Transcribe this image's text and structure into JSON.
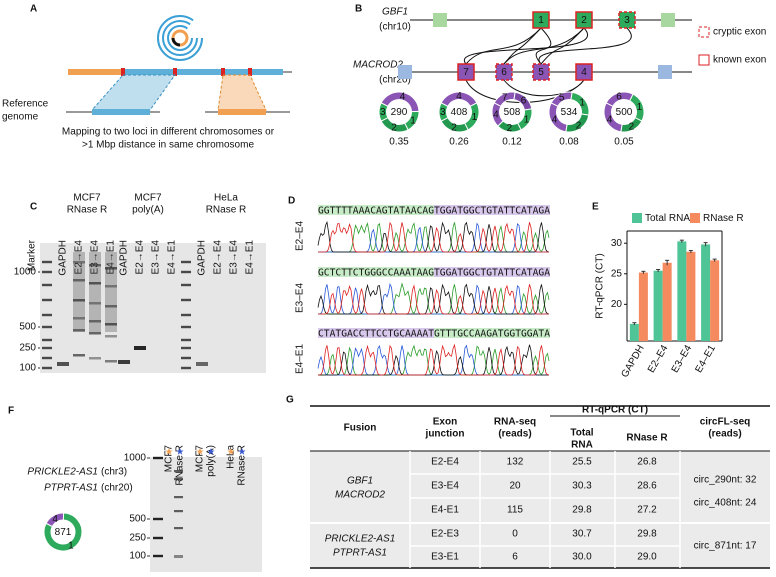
{
  "panels": {
    "A": {
      "label": "A",
      "reference": [
        "Reference",
        "genome"
      ],
      "caption": [
        "Mapping to two loci in different chromosomes or",
        ">1 Mbp distance in same chromosome"
      ]
    },
    "B": {
      "label": "B",
      "genes": [
        {
          "name": "GBF1",
          "chr": "(chr10)",
          "exons": [
            "1",
            "2",
            "3"
          ]
        },
        {
          "name": "MACROD2",
          "chr": "(chr20)",
          "exons": [
            "7",
            "6",
            "5",
            "4"
          ]
        }
      ],
      "legend": [
        "cryptic exon",
        "known exon"
      ],
      "donuts": [
        {
          "center": 290,
          "fraction": 0.35,
          "segments": [
            {
              "label": "4",
              "color": "#8b55b5",
              "size": 42
            },
            {
              "label": "1",
              "color": "#2eaa5c",
              "size": 18
            },
            {
              "label": "2",
              "color": "#23994f",
              "size": 25
            },
            {
              "label": "3",
              "color": "#2eaa5c",
              "size": 15
            }
          ]
        },
        {
          "center": 408,
          "fraction": 0.26,
          "segments": [
            {
              "label": "4",
              "color": "#8b55b5",
              "size": 35
            },
            {
              "label": "1",
              "color": "#2eaa5c",
              "size": 25
            },
            {
              "label": "2",
              "color": "#23994f",
              "size": 25
            },
            {
              "label": "3",
              "color": "#2eaa5c",
              "size": 15
            }
          ]
        },
        {
          "center": 508,
          "fraction": 0.12,
          "segments": [
            {
              "label": "7",
              "color": "#8b55b5",
              "size": 20
            },
            {
              "label": "6",
              "color": "#7a48a5",
              "size": 20
            },
            {
              "label": "1",
              "color": "#2eaa5c",
              "size": 20
            },
            {
              "label": "2",
              "color": "#23994f",
              "size": 20
            },
            {
              "label": "4",
              "color": "#8b55b5",
              "size": 20
            }
          ]
        },
        {
          "center": 534,
          "fraction": 0.08,
          "segments": [
            {
              "label": "5",
              "color": "#8b55b5",
              "size": 20
            },
            {
              "label": "1",
              "color": "#2eaa5c",
              "size": 25
            },
            {
              "label": "2",
              "color": "#23994f",
              "size": 25
            },
            {
              "label": "4",
              "color": "#8b55b5",
              "size": 30
            }
          ]
        },
        {
          "center": 500,
          "fraction": 0.05,
          "segments": [
            {
              "label": "6",
              "color": "#8b55b5",
              "size": 25
            },
            {
              "label": "1",
              "color": "#2eaa5c",
              "size": 25
            },
            {
              "label": "2",
              "color": "#23994f",
              "size": 20
            },
            {
              "label": "4",
              "color": "#8b55b5",
              "size": 30
            }
          ]
        }
      ]
    },
    "C": {
      "label": "C",
      "groups": [
        [
          "MCF7",
          "RNase R"
        ],
        [
          "MCF7",
          "poly(A)"
        ],
        [
          "HeLa",
          "RNase R"
        ]
      ],
      "lanes": [
        "Marker",
        "GAPDH",
        "E2→E4",
        "E3→E4",
        "E4→E1",
        "GAPDH",
        "E2→E4",
        "E3→E4",
        "E4→E1",
        "GAPDH",
        "E2→E4",
        "E3→E4",
        "E4→E1"
      ],
      "ladder": [
        1000,
        500,
        250,
        100
      ]
    },
    "D": {
      "label": "D",
      "rows": [
        {
          "junction": "E2–E4",
          "sequence": "GGTTTTAAACAGTATAACAGTGGATGGCTGTATTCATAGA"
        },
        {
          "junction": "E3–E4",
          "sequence": "GCTCTTCTGGGCCAAATAAGTGGATGGCTGTATTCATAGA"
        },
        {
          "junction": "E4–E1",
          "sequence": "CTATGACCTTCCTGCAAAATGTTTGCCAAGATGGTGGATA"
        }
      ]
    },
    "E": {
      "label": "E"
    },
    "F": {
      "label": "F",
      "genes": [
        {
          "name": "PRICKLE2-AS1",
          "chr": "(chr3)"
        },
        {
          "name": "PTPRT-AS1",
          "chr": "(chr20)"
        }
      ],
      "donut": {
        "center": 871,
        "segments": [
          {
            "label": "4",
            "color": "#8b55b5",
            "size": 18
          },
          {
            "label": "1",
            "color": "#2eaa5c",
            "size": 82
          }
        ]
      },
      "lanes": [
        [
          "MCF7",
          "RNase R"
        ],
        [
          "MCF7",
          "poly(A)"
        ],
        [
          "HeLa",
          "RNase R"
        ]
      ],
      "ladder": [
        1000,
        500,
        250,
        100
      ]
    },
    "G": {
      "label": "G",
      "header": {
        "fusion": "Fusion",
        "junction": [
          "Exon",
          "junction"
        ],
        "rnaseq": [
          "RNA-seq",
          "(reads)"
        ],
        "rtqpcr": "RT-qPCR (CT)",
        "total": [
          "Total",
          "RNA"
        ],
        "rnaser": "RNase R",
        "circfl": [
          "circFL-seq",
          "(reads)"
        ]
      },
      "groups": [
        {
          "fusion": [
            "GBF1",
            "MACROD2"
          ],
          "rows": [
            [
              "E2-E4",
              "132",
              "25.5",
              "26.8"
            ],
            [
              "E3-E4",
              "20",
              "30.3",
              "28.6"
            ],
            [
              "E4-E1",
              "115",
              "29.8",
              "27.2"
            ]
          ],
          "circfl": [
            "circ_290nt: 32",
            "circ_408nt: 24"
          ]
        },
        {
          "fusion": [
            "PRICKLE2-AS1",
            "PTPRT-AS1"
          ],
          "rows": [
            [
              "E2-E3",
              "0",
              "30.7",
              "29.8"
            ],
            [
              "E3-E1",
              "6",
              "30.0",
              "29.0"
            ]
          ],
          "circfl": [
            "circ_871nt: 17"
          ]
        }
      ]
    }
  },
  "chart_data": {
    "type": "bar",
    "ylabel": "RT-qPCR (CT)",
    "categories": [
      "GAPDH",
      "E2–E4",
      "E3–E4",
      "E4–E1"
    ],
    "series": [
      {
        "name": "Total RNA",
        "color": "#4fc497",
        "values": [
          16.8,
          25.5,
          30.3,
          29.8
        ],
        "errors": [
          0.2,
          0.2,
          0.2,
          0.3
        ]
      },
      {
        "name": "RNase R",
        "color": "#f58a5f",
        "values": [
          25.2,
          26.8,
          28.6,
          27.2
        ],
        "errors": [
          0.2,
          0.4,
          0.2,
          0.2
        ]
      }
    ],
    "ylim": [
      14,
      32
    ],
    "yticks": [
      20,
      25,
      30
    ]
  }
}
